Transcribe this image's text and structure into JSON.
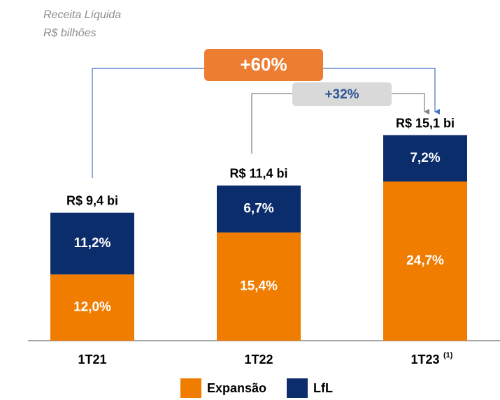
{
  "chart_data": {
    "type": "bar",
    "title": "Receita Líquida",
    "subtitle": "R$ bilhões",
    "categories": [
      "1T21",
      "1T22",
      "1T23"
    ],
    "category_notes": [
      null,
      null,
      "(1)"
    ],
    "series": [
      {
        "name": "Expansão",
        "color": "#f07c00",
        "values": [
          12.0,
          15.4,
          24.7
        ],
        "value_labels": [
          "12,0%",
          "15,4%",
          "24,7%"
        ]
      },
      {
        "name": "LfL",
        "color": "#0b2d6b",
        "values": [
          11.2,
          6.7,
          7.2
        ],
        "value_labels": [
          "11,2%",
          "6,7%",
          "7,2%"
        ]
      }
    ],
    "totals": {
      "values": [
        9.4,
        11.4,
        15.1
      ],
      "value_labels": [
        "R$ 9,4 bi",
        "R$ 11,4 bi",
        "R$ 15,1 bi"
      ]
    },
    "annotations": [
      "+60%",
      "+32%"
    ]
  }
}
